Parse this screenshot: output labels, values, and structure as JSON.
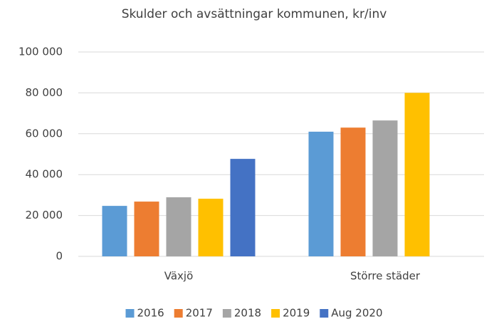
{
  "chart_data": {
    "type": "bar",
    "title": "Skulder och avsättningar kommunen, kr/inv",
    "categories": [
      "Växjö",
      "Större städer"
    ],
    "series": [
      {
        "name": "2016",
        "color": "#5b9bd5",
        "values": [
          24700,
          61000
        ]
      },
      {
        "name": "2017",
        "color": "#ed7d31",
        "values": [
          26800,
          63000
        ]
      },
      {
        "name": "2018",
        "color": "#a5a5a5",
        "values": [
          28900,
          66500
        ]
      },
      {
        "name": "2019",
        "color": "#ffc000",
        "values": [
          28200,
          80000
        ]
      },
      {
        "name": "Aug 2020",
        "color": "#4472c4",
        "values": [
          47700,
          null
        ]
      }
    ],
    "ylim": [
      0,
      100000
    ],
    "yticks": [
      0,
      {
        "value": 20000,
        "label": "20 000"
      },
      {
        "value": 40000,
        "label": "40 000"
      },
      {
        "value": 60000,
        "label": "60 000"
      },
      {
        "value": 80000,
        "label": "80 000"
      },
      {
        "value": 100000,
        "label": "100 000"
      }
    ],
    "grid": true,
    "legend": "bottom"
  }
}
